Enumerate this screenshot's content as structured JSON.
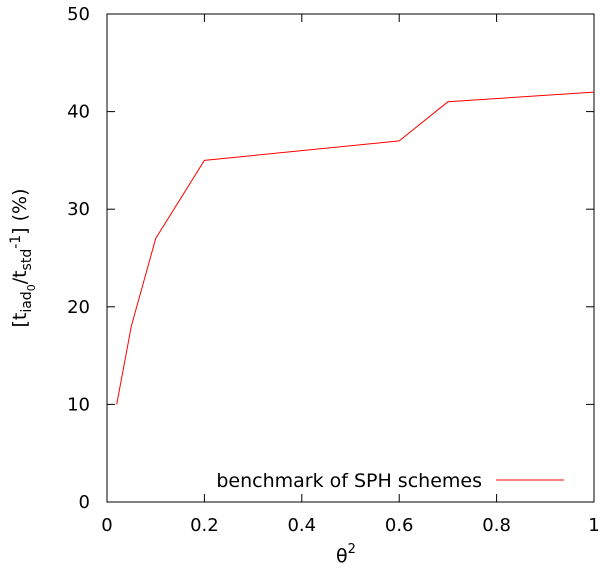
{
  "chart_data": {
    "type": "line",
    "xlabel_base": "θ",
    "xlabel_sup": "2",
    "ylabel": {
      "open": "[t",
      "sub1": "iad",
      "sub1_sub": "0",
      "slash": "/t",
      "sub2": "std",
      "minus_one": "-1",
      "close": "] (%)"
    },
    "xlim": [
      0,
      1
    ],
    "ylim": [
      0,
      50
    ],
    "x_ticks": [
      0,
      0.2,
      0.4,
      0.6,
      0.8,
      1
    ],
    "x_tick_labels": [
      "0",
      "0.2",
      "0.4",
      "0.6",
      "0.8",
      "1"
    ],
    "y_ticks": [
      0,
      10,
      20,
      30,
      40,
      50
    ],
    "y_tick_labels": [
      "0",
      "10",
      "20",
      "30",
      "40",
      "50"
    ],
    "grid": false,
    "legend_position": "bottom-right",
    "series": [
      {
        "name": "benchmark of SPH schemes",
        "color": "#ff0000",
        "x": [
          0.02,
          0.05,
          0.1,
          0.2,
          0.6,
          0.7,
          1.0
        ],
        "y": [
          10,
          18,
          27,
          35,
          37,
          41,
          42
        ]
      }
    ]
  }
}
